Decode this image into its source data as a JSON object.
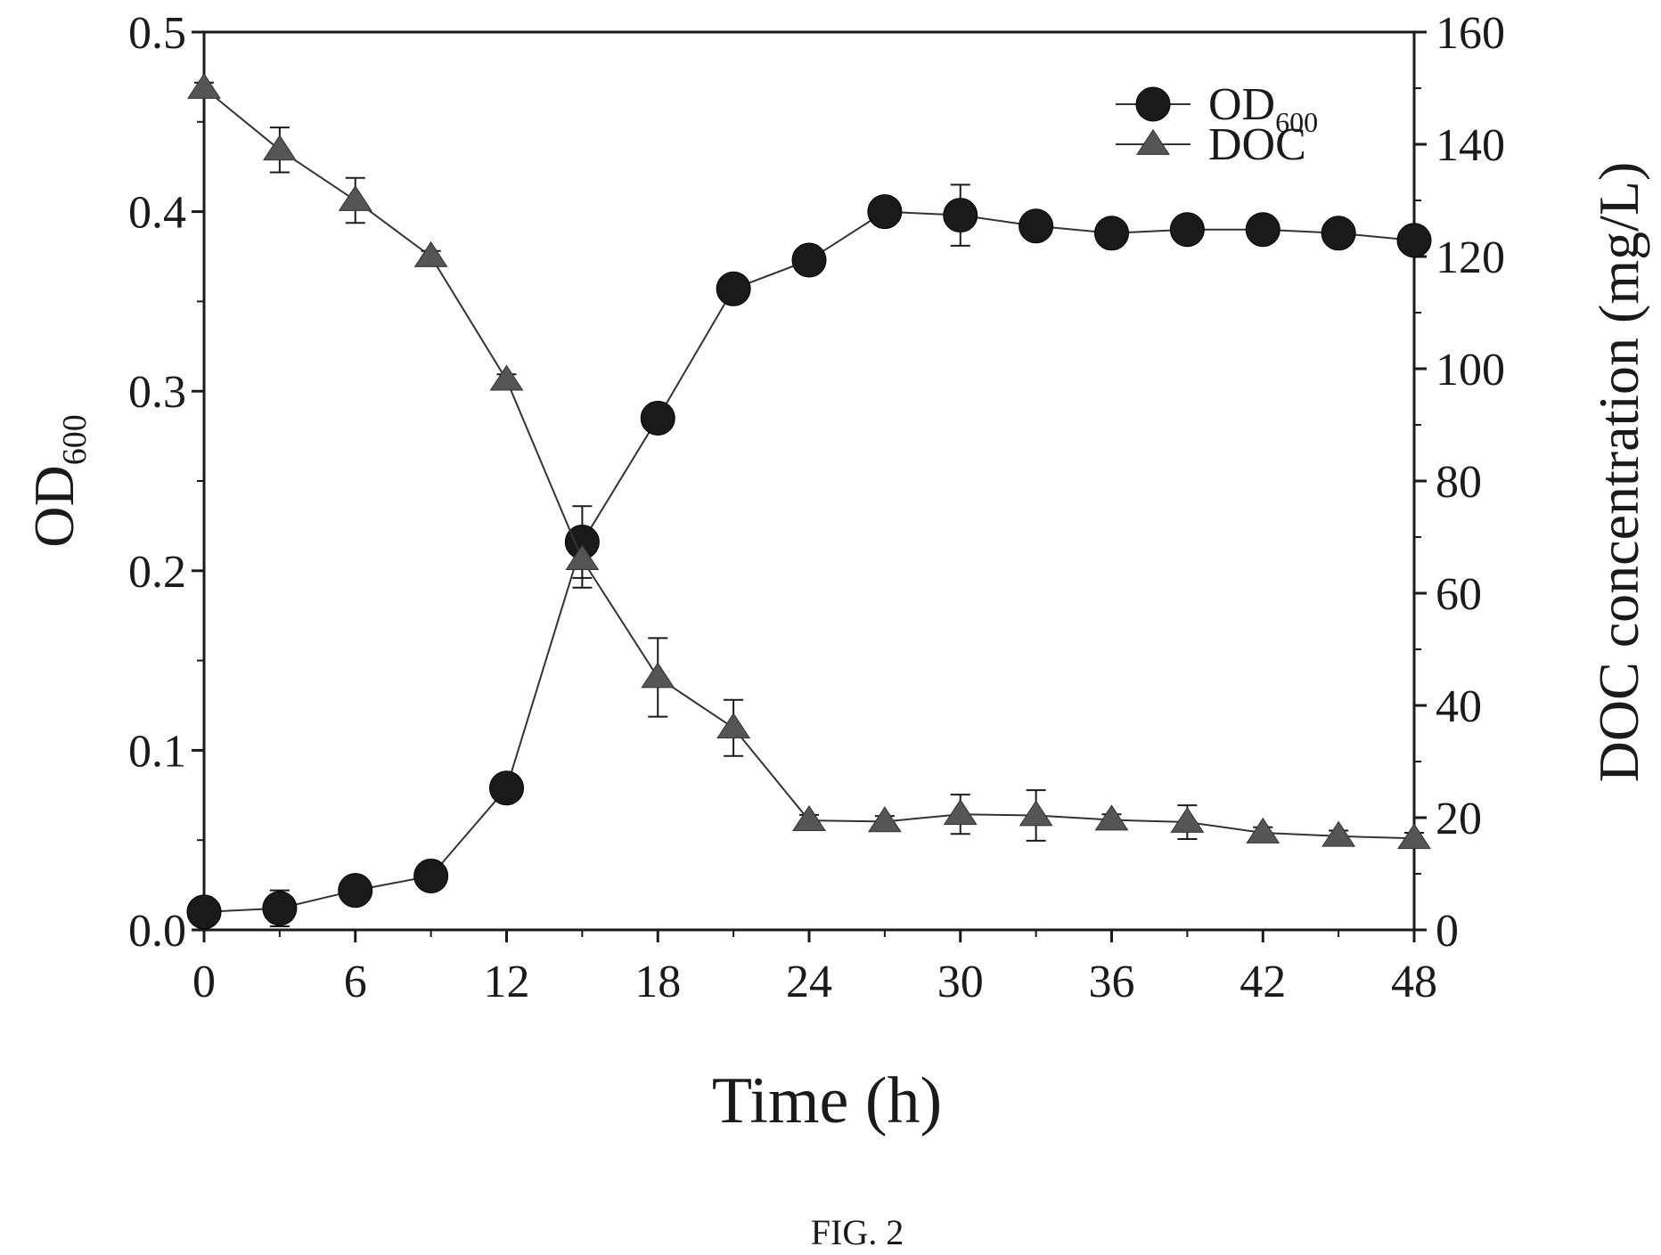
{
  "chart_data": {
    "type": "line",
    "xlabel": "Time (h)",
    "ylabel_left": {
      "main": "OD",
      "sub": "600"
    },
    "ylabel_right": "DOC concentration (mg/L)",
    "x_ticks": [
      "0",
      "6",
      "12",
      "18",
      "24",
      "30",
      "36",
      "42",
      "48"
    ],
    "y_left_ticks": [
      "0.0",
      "0.1",
      "0.2",
      "0.3",
      "0.4",
      "0.5"
    ],
    "y_right_ticks": [
      "0",
      "20",
      "40",
      "60",
      "80",
      "100",
      "120",
      "140",
      "160"
    ],
    "xlim": [
      0,
      48
    ],
    "ylim_left": [
      0,
      0.5
    ],
    "ylim_right": [
      0,
      160
    ],
    "grid": false,
    "legend_position": "top-right",
    "x": [
      0,
      3,
      6,
      9,
      12,
      15,
      18,
      21,
      24,
      27,
      30,
      33,
      36,
      39,
      42,
      45,
      48
    ],
    "series": [
      {
        "name": "OD",
        "name_sub": "600",
        "axis": "left",
        "marker": "circle",
        "values": [
          0.01,
          0.012,
          0.022,
          0.03,
          0.079,
          0.216,
          0.285,
          0.357,
          0.373,
          0.4,
          0.398,
          0.392,
          0.388,
          0.39,
          0.39,
          0.388,
          0.384
        ],
        "errors": [
          0.004,
          0.01,
          0.004,
          0.007,
          0.004,
          0.02,
          0.004,
          0.004,
          0.004,
          0.004,
          0.017,
          0.004,
          0.004,
          0.004,
          0.004,
          0.004,
          0.004
        ]
      },
      {
        "name": "DOC",
        "axis": "right",
        "marker": "triangle",
        "values": [
          150,
          139,
          130,
          120,
          98,
          66,
          45,
          36,
          19.5,
          19.3,
          20.6,
          20.4,
          19.6,
          19.2,
          17.3,
          16.7,
          16.3
        ],
        "errors": [
          1,
          4,
          4,
          1,
          1,
          5,
          7,
          5,
          1,
          1,
          3.5,
          4.5,
          1,
          3,
          1,
          1,
          1
        ]
      }
    ],
    "colors": {
      "line": "#333333",
      "circle_marker": "#1a1a1a",
      "triangle_marker": "#555555",
      "axis": "#1a1a1a"
    }
  },
  "caption": "FIG. 2"
}
